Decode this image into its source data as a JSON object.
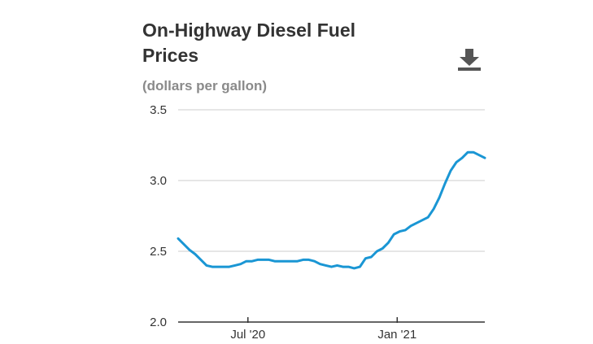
{
  "title": "On-Highway Diesel Fuel Prices",
  "subtitle": "(dollars per gallon)",
  "download_icon": "download-icon",
  "colors": {
    "line": "#1a96d4",
    "grid": "#cccccc",
    "axis": "#333333"
  },
  "chart_data": {
    "type": "line",
    "title": "On-Highway Diesel Fuel Prices",
    "ylabel": "(dollars per gallon)",
    "xlabel": "",
    "ylim": [
      2.0,
      3.5
    ],
    "yticks": [
      {
        "value": 3.5,
        "label": "3.5"
      },
      {
        "value": 3.0,
        "label": "3.0"
      },
      {
        "value": 2.5,
        "label": "2.5"
      },
      {
        "value": 2.0,
        "label": "2.0"
      }
    ],
    "xlim": [
      "2020-04-06",
      "2021-04-19"
    ],
    "xticks": [
      {
        "value": "2020-07-01",
        "label": "Jul '20"
      },
      {
        "value": "2021-01-01",
        "label": "Jan '21"
      }
    ],
    "grid": true,
    "legend": "none",
    "series": [
      {
        "x": [
          "2020-04-06",
          "2020-04-13",
          "2020-04-20",
          "2020-04-27",
          "2020-05-04",
          "2020-05-11",
          "2020-05-18",
          "2020-05-25",
          "2020-06-01",
          "2020-06-08",
          "2020-06-15",
          "2020-06-22",
          "2020-06-29",
          "2020-07-06",
          "2020-07-13",
          "2020-07-20",
          "2020-07-27",
          "2020-08-03",
          "2020-08-10",
          "2020-08-17",
          "2020-08-24",
          "2020-08-31",
          "2020-09-07",
          "2020-09-14",
          "2020-09-21",
          "2020-09-28",
          "2020-10-05",
          "2020-10-12",
          "2020-10-19",
          "2020-10-26",
          "2020-11-02",
          "2020-11-09",
          "2020-11-16",
          "2020-11-23",
          "2020-11-30",
          "2020-12-07",
          "2020-12-14",
          "2020-12-21",
          "2020-12-28",
          "2021-01-04",
          "2021-01-11",
          "2021-01-18",
          "2021-01-25",
          "2021-02-01",
          "2021-02-08",
          "2021-02-15",
          "2021-02-22",
          "2021-03-01",
          "2021-03-08",
          "2021-03-15",
          "2021-03-22",
          "2021-03-29",
          "2021-04-05",
          "2021-04-12",
          "2021-04-19"
        ],
        "values": [
          2.59,
          2.55,
          2.51,
          2.48,
          2.44,
          2.4,
          2.39,
          2.39,
          2.39,
          2.39,
          2.4,
          2.41,
          2.43,
          2.43,
          2.44,
          2.44,
          2.44,
          2.43,
          2.43,
          2.43,
          2.43,
          2.43,
          2.44,
          2.44,
          2.43,
          2.41,
          2.4,
          2.39,
          2.4,
          2.39,
          2.39,
          2.38,
          2.39,
          2.45,
          2.46,
          2.5,
          2.52,
          2.56,
          2.62,
          2.64,
          2.65,
          2.68,
          2.7,
          2.72,
          2.74,
          2.8,
          2.88,
          2.98,
          3.07,
          3.13,
          3.16,
          3.2,
          3.2,
          3.18,
          3.16
        ]
      }
    ]
  }
}
